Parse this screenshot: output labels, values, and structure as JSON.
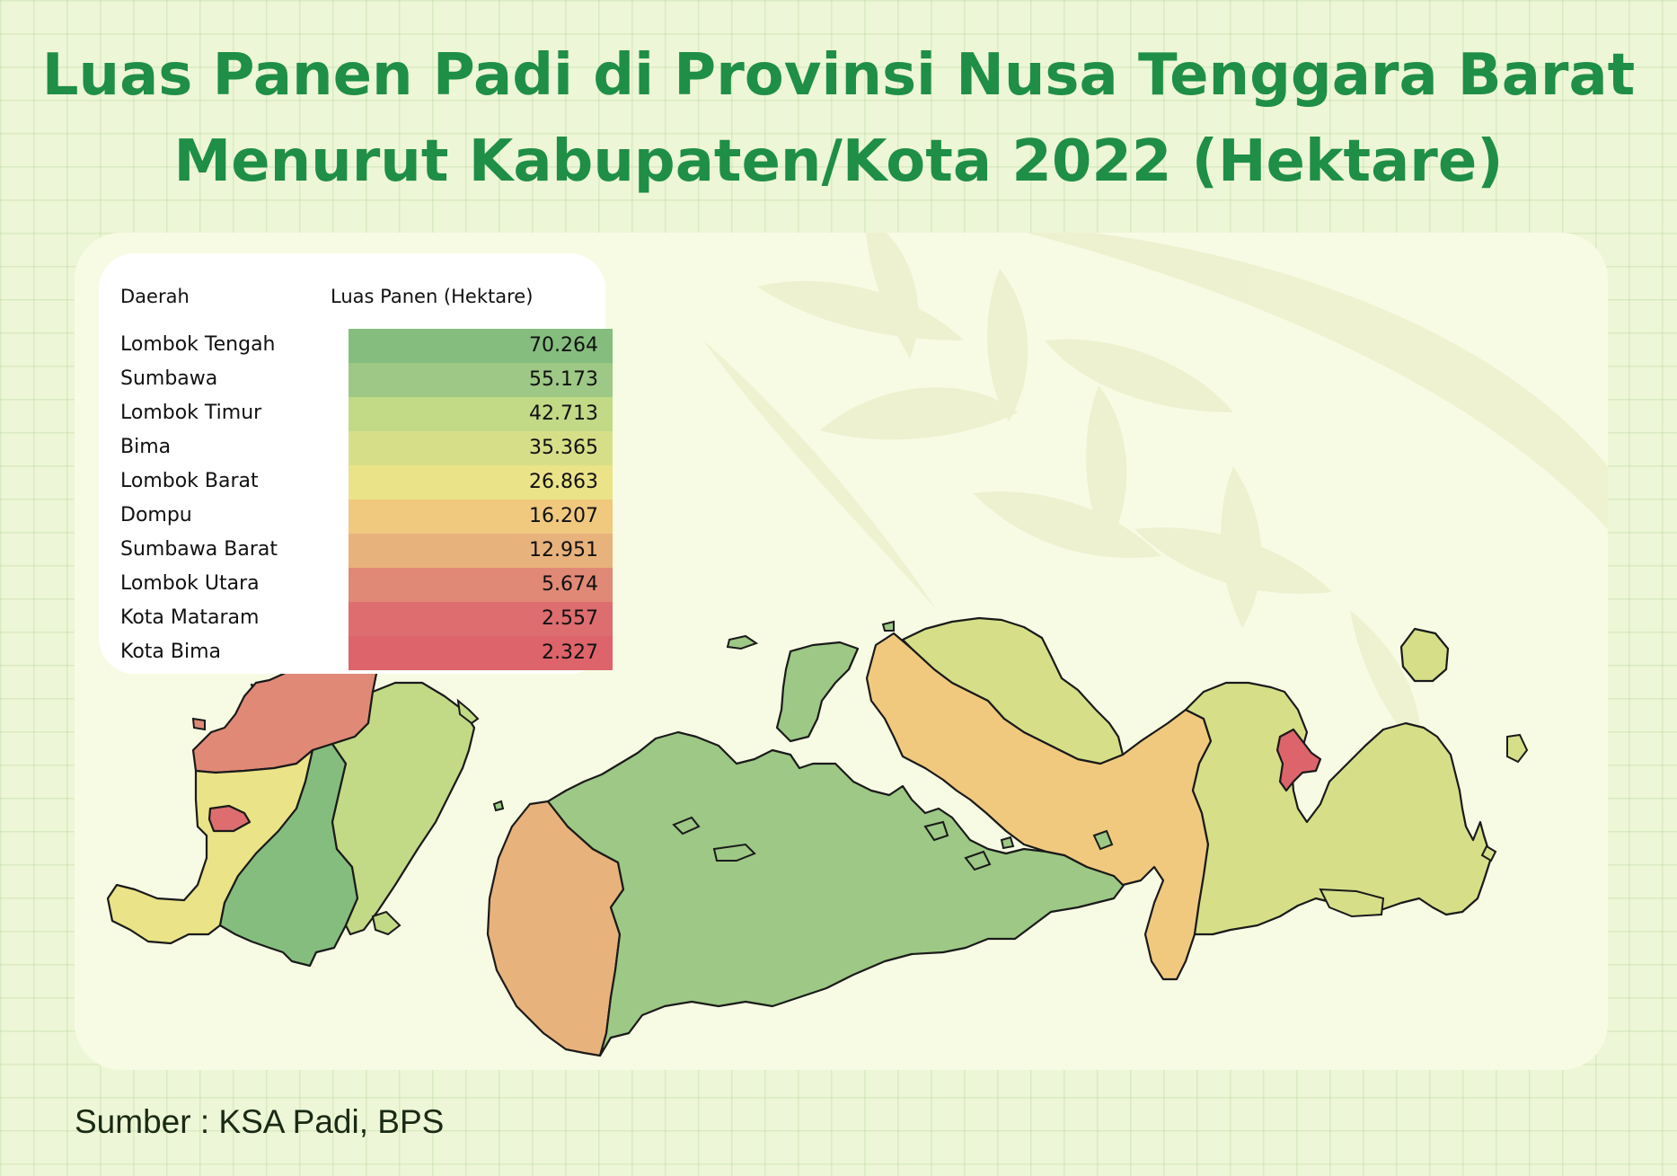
{
  "title": {
    "line1": "Luas Panen Padi di Provinsi Nusa Tenggara Barat",
    "line2": "Menurut Kabupaten/Kota 2022 (Hektare)"
  },
  "legend": {
    "header_region": "Daerah",
    "header_value": "Luas Panen (Hektare)",
    "rows": [
      {
        "name": "Lombok Tengah",
        "value": "70.264",
        "color": "#85bd7e"
      },
      {
        "name": "Sumbawa",
        "value": "55.173",
        "color": "#9dc885"
      },
      {
        "name": "Lombok Timur",
        "value": "42.713",
        "color": "#c2d986"
      },
      {
        "name": "Bima",
        "value": "35.365",
        "color": "#d6df88"
      },
      {
        "name": "Lombok Barat",
        "value": "26.863",
        "color": "#eae388"
      },
      {
        "name": "Dompu",
        "value": "16.207",
        "color": "#f0c97f"
      },
      {
        "name": "Sumbawa Barat",
        "value": "12.951",
        "color": "#e8b27c"
      },
      {
        "name": "Lombok Utara",
        "value": "5.674",
        "color": "#e08976"
      },
      {
        "name": "Kota Mataram",
        "value": "2.557",
        "color": "#dd6d6f"
      },
      {
        "name": "Kota Bima",
        "value": "2.327",
        "color": "#dc646a"
      }
    ]
  },
  "map": {
    "regions": [
      {
        "name": "Lombok Tengah",
        "value": 70264
      },
      {
        "name": "Sumbawa",
        "value": 55173
      },
      {
        "name": "Lombok Timur",
        "value": 42713
      },
      {
        "name": "Bima",
        "value": 35365
      },
      {
        "name": "Lombok Barat",
        "value": 26863
      },
      {
        "name": "Dompu",
        "value": 16207
      },
      {
        "name": "Sumbawa Barat",
        "value": 12951
      },
      {
        "name": "Lombok Utara",
        "value": 5674
      },
      {
        "name": "Kota Mataram",
        "value": 2557
      },
      {
        "name": "Kota Bima",
        "value": 2327
      }
    ]
  },
  "colors": {
    "title": "#1f8e47",
    "background": "#edf6d6",
    "panel": "#f8fbe4",
    "outline": "#1a1a1a"
  },
  "source": "Sumber : KSA Padi, BPS"
}
